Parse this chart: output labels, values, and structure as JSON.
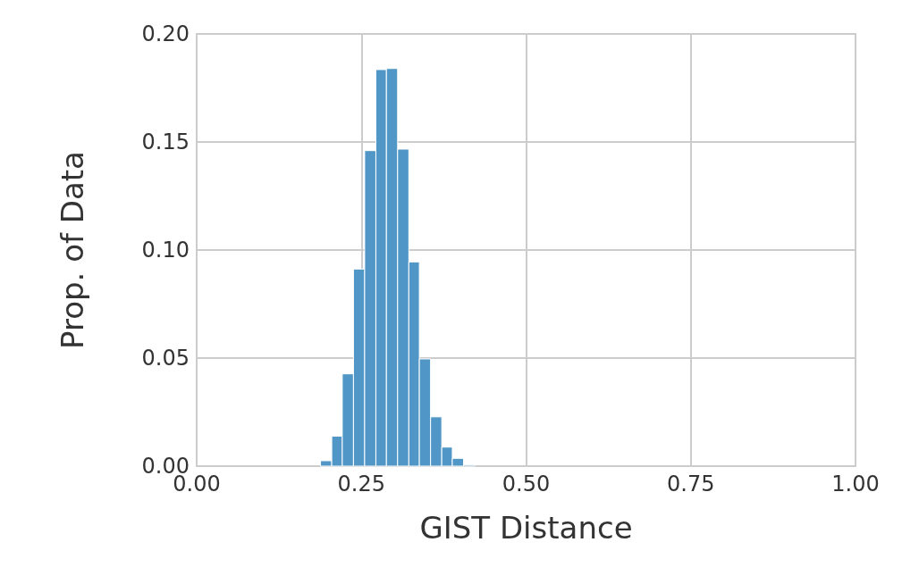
{
  "chart_data": {
    "type": "histogram",
    "xlabel": "GIST Distance",
    "ylabel": "Prop. of Data",
    "bins": [
      0.188,
      0.205,
      0.221,
      0.238,
      0.255,
      0.272,
      0.288,
      0.305,
      0.322,
      0.338,
      0.355,
      0.372,
      0.388,
      0.405,
      0.422
    ],
    "values": [
      0.0025,
      0.0139,
      0.0427,
      0.0912,
      0.146,
      0.1835,
      0.184,
      0.1467,
      0.0945,
      0.0496,
      0.0228,
      0.0088,
      0.0036,
      0.0005
    ],
    "color": "#5096c6",
    "xlim": [
      0,
      1
    ],
    "xticks": [
      {
        "value": 0,
        "label": "0.00"
      },
      {
        "value": 0.25,
        "label": "0.25"
      },
      {
        "value": 0.5,
        "label": "0.50"
      },
      {
        "value": 0.75,
        "label": "0.75"
      },
      {
        "value": 1,
        "label": "1.00"
      }
    ],
    "ylim": [
      0,
      0.2
    ],
    "yticks": [
      {
        "value": 0,
        "label": "0.00"
      },
      {
        "value": 0.05,
        "label": "0.05"
      },
      {
        "value": 0.1,
        "label": "0.10"
      },
      {
        "value": 0.15,
        "label": "0.15"
      },
      {
        "value": 0.2,
        "label": "0.20"
      }
    ],
    "grid": true
  }
}
